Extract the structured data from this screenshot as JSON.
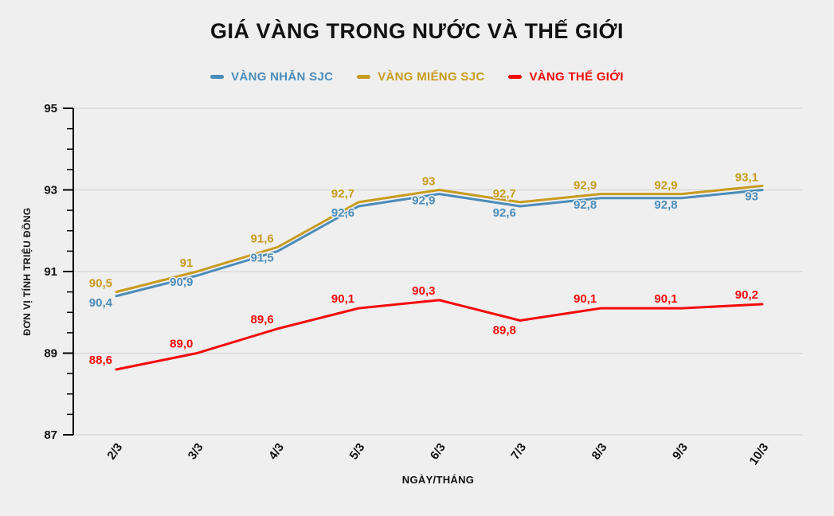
{
  "title": "GIÁ VÀNG TRONG NƯỚC VÀ THẾ GIỚI",
  "chart_data": {
    "type": "line",
    "title": "GIÁ VÀNG TRONG NƯỚC VÀ THẾ GIỚI",
    "xlabel": "NGÀY/THÁNG",
    "ylabel": "ĐƠN VỊ TÍNH TRIỆU ĐỒNG",
    "categories": [
      "2/3",
      "3/3",
      "4/3",
      "5/3",
      "6/3",
      "7/3",
      "8/3",
      "9/3",
      "10/3"
    ],
    "series": [
      {
        "name": "VÀNG NHẪN SJC",
        "color": "#4a8cba",
        "values": [
          90.4,
          90.9,
          91.5,
          92.6,
          92.9,
          92.6,
          92.8,
          92.8,
          93
        ],
        "labels": [
          "90,4",
          "90,9",
          "91,5",
          "92,6",
          "92,9",
          "92,6",
          "92,8",
          "92,8",
          "93"
        ],
        "label_position": "below"
      },
      {
        "name": "VÀNG MIẾNG SJC",
        "color": "#c79b1e",
        "values": [
          90.5,
          91,
          91.6,
          92.7,
          93,
          92.7,
          92.9,
          92.9,
          93.1
        ],
        "labels": [
          "90,5",
          "91",
          "91,6",
          "92,7",
          "93",
          "92,7",
          "92,9",
          "92,9",
          "93,1"
        ],
        "label_position": "above"
      },
      {
        "name": "VÀNG THẾ GIỚI",
        "color": "#f40b0b",
        "values": [
          88.6,
          89.0,
          89.6,
          90.1,
          90.3,
          89.8,
          90.1,
          90.1,
          90.2
        ],
        "labels": [
          "88,6",
          "89,0",
          "89,6",
          "90,1",
          "90,3",
          "89,8",
          "90,1",
          "90,1",
          "90,2"
        ],
        "label_position": "auto"
      }
    ],
    "ylim": [
      87,
      95
    ],
    "ytick_step": 2,
    "yticks": [
      "87",
      "89",
      "91",
      "93",
      "95"
    ],
    "minor_tick_step": 0.5,
    "grid": true,
    "legend_position": "top",
    "background_color": "#efefef",
    "grid_color": "#cfcfcf",
    "axis_color": "#000000"
  }
}
